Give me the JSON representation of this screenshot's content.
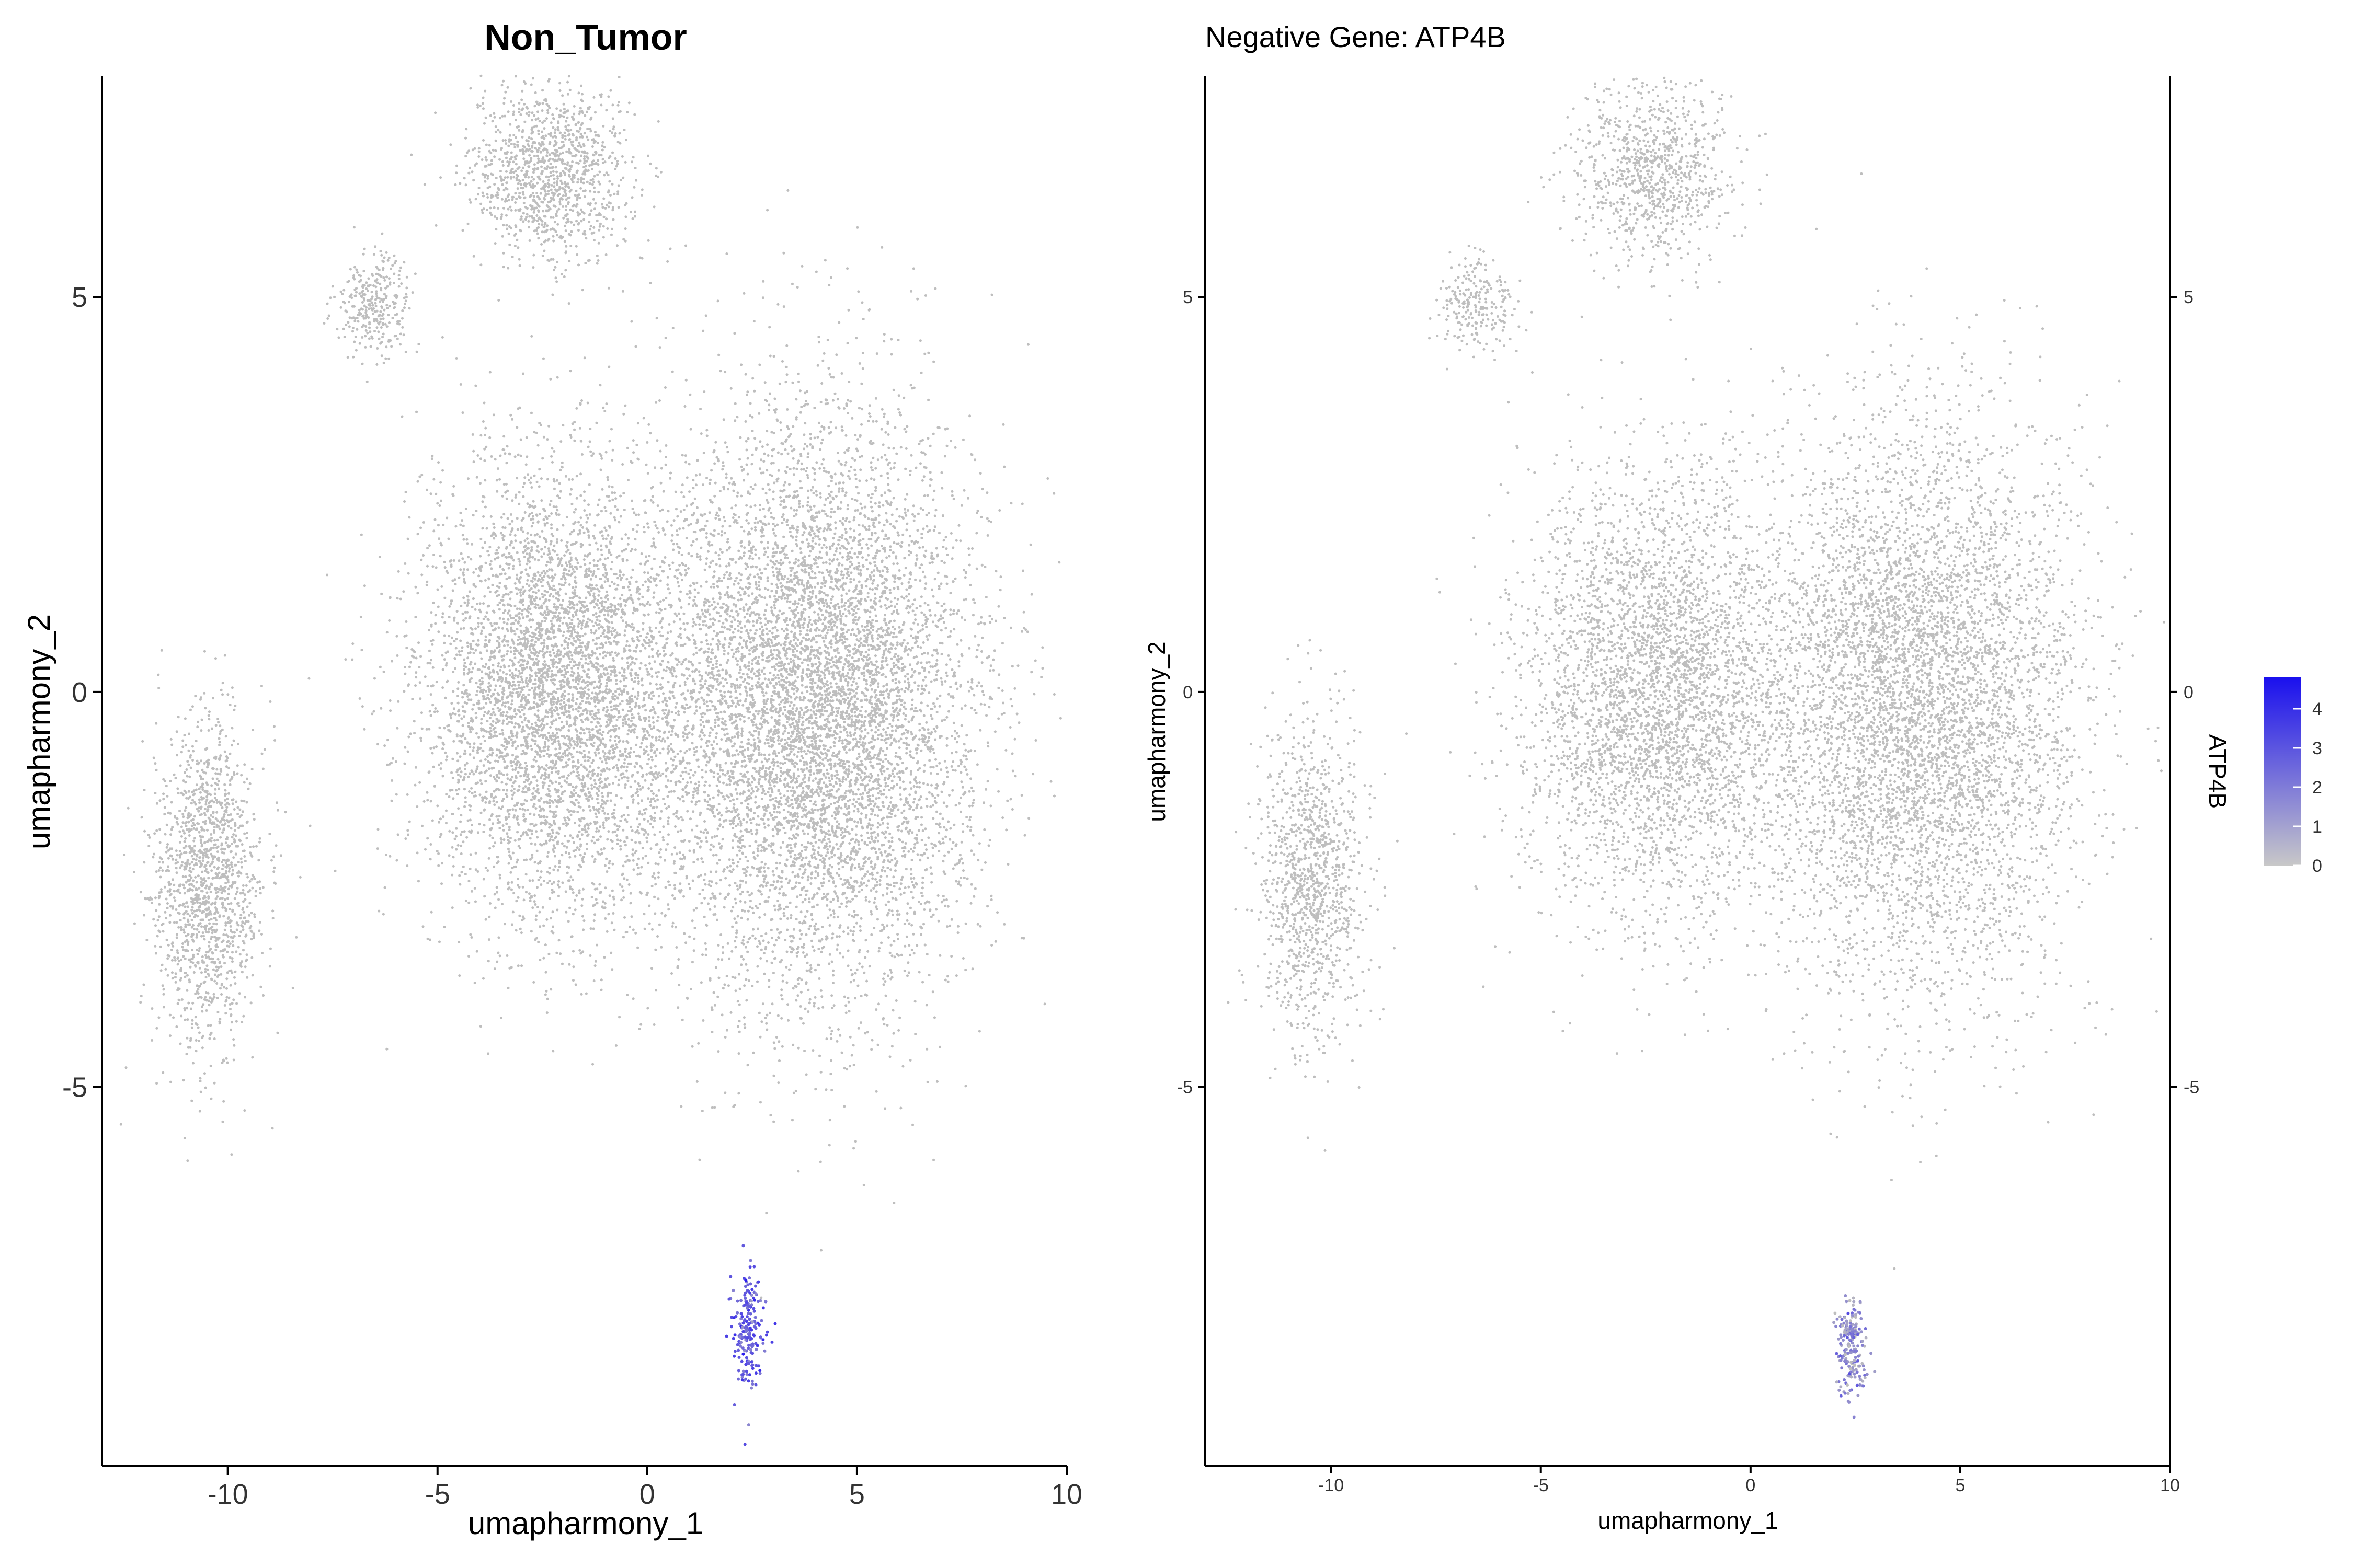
{
  "chart_data": [
    {
      "type": "scatter",
      "title": "Non_Tumor",
      "xlabel": "umapharmony_1",
      "ylabel": "umapharmony_2",
      "xlim": [
        -13,
        10
      ],
      "ylim": [
        -9.8,
        7.8
      ],
      "x_ticks": [
        -10,
        -5,
        0,
        5,
        10
      ],
      "x_tick_labels": [
        "-10",
        "-5",
        "0",
        "5",
        "10"
      ],
      "y_ticks": [
        5,
        0,
        -5
      ],
      "y_tick_labels": [
        "5",
        "0",
        "-5"
      ],
      "grid": false,
      "point_color_default": "#bebebe",
      "point_color_high": "#2a1cf0",
      "clusters": [
        {
          "region": "top",
          "center": [
            -2.3,
            6.6
          ],
          "extent": [
            1.9,
            1.1
          ],
          "expression": 0
        },
        {
          "region": "upper-left",
          "center": [
            -6.5,
            4.9
          ],
          "extent": [
            0.9,
            0.6
          ],
          "expression": 0
        },
        {
          "region": "left-arc",
          "center": [
            -10.5,
            -2.4
          ],
          "extent": [
            1.3,
            2.0
          ],
          "expression": 0
        },
        {
          "region": "center",
          "center": [
            -2.2,
            0.0
          ],
          "extent": [
            3.2,
            2.8
          ],
          "expression": 0
        },
        {
          "region": "right",
          "center": [
            4.0,
            -0.2
          ],
          "extent": [
            3.8,
            3.6
          ],
          "expression": 0
        },
        {
          "region": "bottom",
          "center": [
            2.4,
            -8.1
          ],
          "extent": [
            0.4,
            0.8
          ],
          "expression": 3
        }
      ]
    },
    {
      "type": "scatter",
      "title": "Negative Gene: ATP4B",
      "xlabel": "umapharmony_1",
      "ylabel": "umapharmony_2",
      "xlim": [
        -13,
        10
      ],
      "ylim": [
        -9.8,
        7.8
      ],
      "x_ticks": [
        -10,
        -5,
        0,
        5,
        10
      ],
      "x_tick_labels": [
        "-10",
        "-5",
        "0",
        "5",
        "10"
      ],
      "y_ticks": [
        5,
        0,
        -5
      ],
      "y_tick_labels": [
        "5",
        "0",
        "-5"
      ],
      "grid": false,
      "point_color_default": "#bebebe",
      "point_color_high": "#2a1cf0",
      "legend": {
        "title": "ATP4B",
        "position": "right",
        "ticks": [
          4,
          3,
          2,
          1,
          0
        ],
        "tick_labels": [
          "4",
          "3",
          "2",
          "1",
          "0"
        ],
        "range": [
          0,
          4.8
        ],
        "color_low": "#c8c8c8",
        "color_high": "#1a10ee"
      },
      "clusters": [
        {
          "region": "top",
          "center": [
            -2.3,
            6.6
          ],
          "extent": [
            1.9,
            1.1
          ],
          "expression": 0
        },
        {
          "region": "upper-left",
          "center": [
            -6.5,
            4.9
          ],
          "extent": [
            0.9,
            0.6
          ],
          "expression": 0
        },
        {
          "region": "left-arc",
          "center": [
            -10.5,
            -2.4
          ],
          "extent": [
            1.3,
            2.0
          ],
          "expression": 0
        },
        {
          "region": "center",
          "center": [
            -2.2,
            0.0
          ],
          "extent": [
            3.2,
            2.8
          ],
          "expression": 0
        },
        {
          "region": "right",
          "center": [
            4.0,
            -0.2
          ],
          "extent": [
            3.8,
            3.6
          ],
          "expression": 0
        },
        {
          "region": "bottom",
          "center": [
            2.4,
            -8.3
          ],
          "extent": [
            0.35,
            0.6
          ],
          "expression": 1.5
        }
      ]
    }
  ]
}
